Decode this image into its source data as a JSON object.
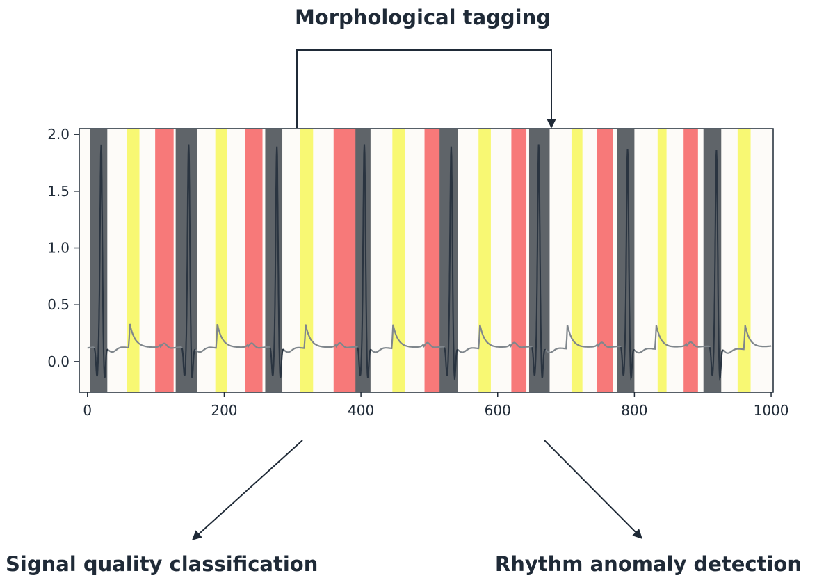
{
  "diagram": {
    "top_label": "Morphological tagging",
    "bottom_left_label": "Signal quality classification",
    "bottom_right_label": "Rhythm anomaly detection"
  },
  "colors": {
    "qrs": "#5f6469",
    "p_wave": "#f8f873",
    "t_wave": "#f77979",
    "background": "#fdfbf8",
    "signal": "#2a3440",
    "signal_light": "#7f868c",
    "arrow": "#1f2a37"
  },
  "chart_data": {
    "type": "line",
    "title": "",
    "xlabel": "",
    "ylabel": "",
    "xlim": [
      -12,
      1003
    ],
    "ylim": [
      -0.27,
      2.05
    ],
    "x_ticks": [
      0,
      200,
      400,
      600,
      800,
      1000
    ],
    "x_tick_labels": [
      "0",
      "200",
      "400",
      "600",
      "800",
      "1000"
    ],
    "y_ticks": [
      0.0,
      0.5,
      1.0,
      1.5,
      2.0
    ],
    "y_tick_labels": [
      "0.0",
      "0.5",
      "1.0",
      "1.5",
      "2.0"
    ],
    "grid": false,
    "beats": [
      {
        "r": 20,
        "peak": 1.9
      },
      {
        "r": 148,
        "peak": 1.9
      },
      {
        "r": 277,
        "peak": 1.88
      },
      {
        "r": 405,
        "peak": 1.9
      },
      {
        "r": 532,
        "peak": 1.88
      },
      {
        "r": 660,
        "peak": 1.9
      },
      {
        "r": 790,
        "peak": 1.86
      },
      {
        "r": 920,
        "peak": 1.85
      }
    ],
    "segments": {
      "qrs": [
        [
          4,
          29
        ],
        [
          129,
          160
        ],
        [
          260,
          285
        ],
        [
          386,
          414
        ],
        [
          512,
          542
        ],
        [
          646,
          676
        ],
        [
          775,
          800
        ],
        [
          901,
          927
        ]
      ],
      "p_wave": [
        [
          58,
          76
        ],
        [
          187,
          204
        ],
        [
          311,
          330
        ],
        [
          446,
          464
        ],
        [
          572,
          590
        ],
        [
          708,
          724
        ],
        [
          834,
          847
        ],
        [
          951,
          970
        ]
      ],
      "t_wave": [
        [
          99,
          126
        ],
        [
          231,
          256
        ],
        [
          360,
          392
        ],
        [
          493,
          515
        ],
        [
          620,
          642
        ],
        [
          745,
          769
        ],
        [
          872,
          893
        ]
      ]
    },
    "baseline": 0.12
  }
}
